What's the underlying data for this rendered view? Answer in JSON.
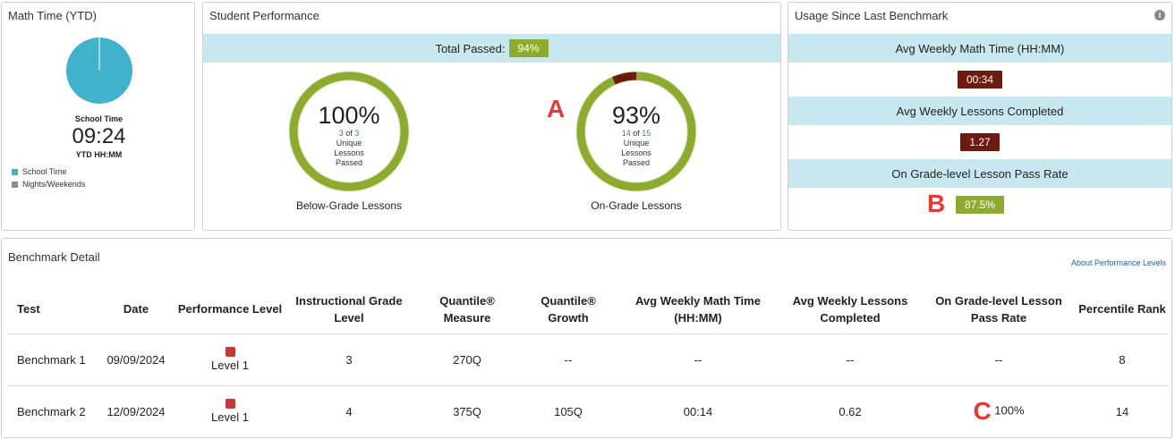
{
  "math_time": {
    "title": "Math Time (YTD)",
    "label": "School Time",
    "value": "09:24",
    "unit": "YTD HH:MM",
    "legend": [
      {
        "label": "School Time",
        "color": "#40b2cc"
      },
      {
        "label": "Nights/Weekends",
        "color": "#8c8c8c"
      }
    ]
  },
  "performance": {
    "title": "Student Performance",
    "total_label": "Total Passed:",
    "total_value": "94%",
    "donuts": [
      {
        "percent": "100%",
        "passed": "3",
        "of_word": "of",
        "total": "3",
        "sub": "Unique Lessons Passed",
        "caption": "Below-Grade Lessons",
        "fraction": 1.0
      },
      {
        "percent": "93%",
        "passed": "14",
        "of_word": "of",
        "total": "15",
        "sub": "Unique Lessons Passed",
        "caption": "On-Grade Lessons",
        "fraction": 0.9333
      }
    ]
  },
  "usage": {
    "title": "Usage Since Last Benchmark",
    "info_icon": "i",
    "rows": [
      {
        "label": "Avg Weekly Math Time (HH:MM)",
        "value": "00:34",
        "color": "#6d1a0f"
      },
      {
        "label": "Avg Weekly Lessons Completed",
        "value": "1.27",
        "color": "#6d1a0f"
      },
      {
        "label": "On Grade-level Lesson Pass Rate",
        "value": "87.5%",
        "color": "#8cab2f"
      }
    ]
  },
  "markers": {
    "a": "A",
    "b": "B",
    "c": "C"
  },
  "benchmark": {
    "title": "Benchmark Detail",
    "about_link": "About Performance Levels",
    "headers": [
      "Test",
      "Date",
      "Performance Level",
      "Instructional Grade Level",
      "Quantile® Measure",
      "Quantile® Growth",
      "Avg Weekly Math Time (HH:MM)",
      "Avg Weekly Lessons Completed",
      "On Grade-level Lesson Pass Rate",
      "Percentile Rank"
    ],
    "rows": [
      {
        "test": "Benchmark 1",
        "date": "09/09/2024",
        "level": "Level 1",
        "grade": "3",
        "measure": "270Q",
        "growth": "--",
        "math_time": "--",
        "lessons": "--",
        "pass_rate": "--",
        "percentile": "8"
      },
      {
        "test": "Benchmark 2",
        "date": "12/09/2024",
        "level": "Level 1",
        "grade": "4",
        "measure": "375Q",
        "growth": "105Q",
        "math_time": "00:14",
        "lessons": "0.62",
        "pass_rate": "100%",
        "percentile": "14"
      }
    ]
  }
}
